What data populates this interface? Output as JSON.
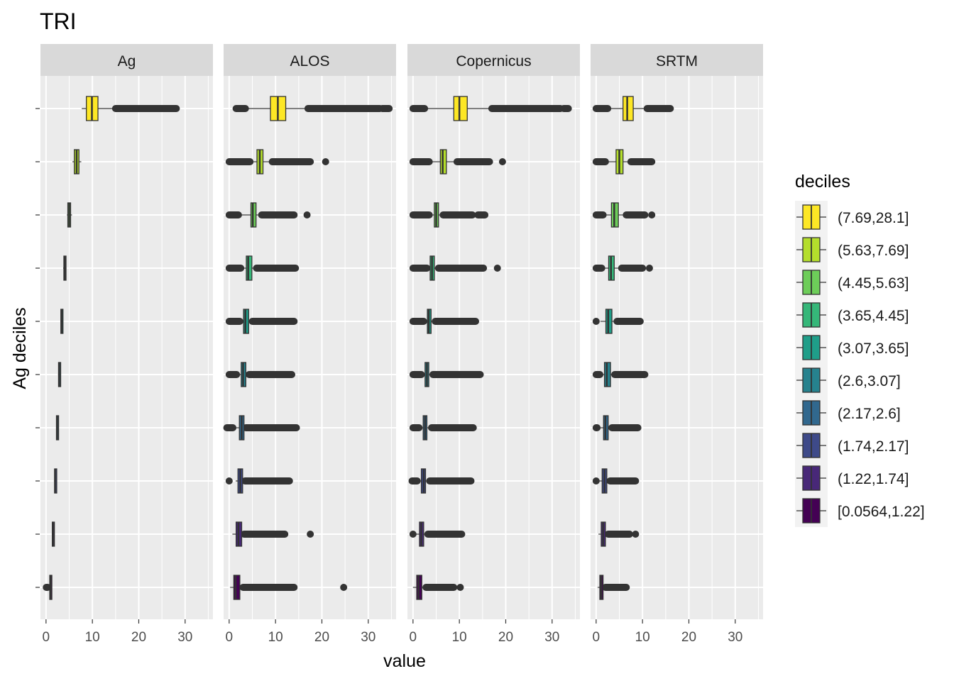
{
  "chart_data": {
    "type": "boxplot",
    "title": "TRI",
    "xlabel": "value",
    "ylabel": "Ag deciles",
    "xlim": [
      -1.2,
      36
    ],
    "x_ticks": [
      0,
      10,
      20,
      30
    ],
    "grid": true,
    "facets": [
      "Ag",
      "ALOS",
      "Copernicus",
      "SRTM"
    ],
    "legend": {
      "title": "deciles",
      "position": "right",
      "entries": [
        {
          "label": "(7.69,28.1]",
          "color": "#FDE725"
        },
        {
          "label": "(5.63,7.69]",
          "color": "#B4DE2C"
        },
        {
          "label": "(4.45,5.63]",
          "color": "#6DCD59"
        },
        {
          "label": "(3.65,4.45]",
          "color": "#35B779"
        },
        {
          "label": "(3.07,3.65]",
          "color": "#1F9E89"
        },
        {
          "label": "(2.6,3.07]",
          "color": "#26828E"
        },
        {
          "label": "(2.17,2.6]",
          "color": "#31688E"
        },
        {
          "label": "(1.74,2.17]",
          "color": "#3E4A89"
        },
        {
          "label": "(1.22,1.74]",
          "color": "#482878"
        },
        {
          "label": "[0.0564,1.22]",
          "color": "#440154"
        }
      ]
    },
    "panels": [
      {
        "name": "Ag",
        "boxes": [
          {
            "decile": "(7.69,28.1]",
            "lw": 7.7,
            "q1": 8.7,
            "med": 9.9,
            "q3": 11.2,
            "uw": 15.0,
            "out_min": null,
            "out_ranges": [
              [
                15.0,
                28.1
              ]
            ]
          },
          {
            "decile": "(5.63,7.69]",
            "lw": 5.7,
            "q1": 6.1,
            "med": 6.6,
            "q3": 7.1,
            "uw": 7.6,
            "out_min": null,
            "out_ranges": []
          },
          {
            "decile": "(4.45,5.63]",
            "lw": 4.5,
            "q1": 4.7,
            "med": 5.0,
            "q3": 5.3,
            "uw": 5.6,
            "out_min": null,
            "out_ranges": []
          },
          {
            "decile": "(3.65,4.45]",
            "lw": 3.7,
            "q1": 3.85,
            "med": 4.05,
            "q3": 4.25,
            "uw": 4.4,
            "out_min": null,
            "out_ranges": []
          },
          {
            "decile": "(3.07,3.65]",
            "lw": 3.1,
            "q1": 3.2,
            "med": 3.35,
            "q3": 3.5,
            "uw": 3.6,
            "out_min": null,
            "out_ranges": []
          },
          {
            "decile": "(2.6,3.07]",
            "lw": 2.6,
            "q1": 2.7,
            "med": 2.85,
            "q3": 2.95,
            "uw": 3.05,
            "out_min": null,
            "out_ranges": []
          },
          {
            "decile": "(2.17,2.6]",
            "lw": 2.2,
            "q1": 2.25,
            "med": 2.4,
            "q3": 2.5,
            "uw": 2.58,
            "out_min": null,
            "out_ranges": []
          },
          {
            "decile": "(1.74,2.17]",
            "lw": 1.75,
            "q1": 1.85,
            "med": 1.95,
            "q3": 2.05,
            "uw": 2.15,
            "out_min": null,
            "out_ranges": []
          },
          {
            "decile": "(1.22,1.74]",
            "lw": 1.25,
            "q1": 1.35,
            "med": 1.5,
            "q3": 1.6,
            "uw": 1.72,
            "out_min": null,
            "out_ranges": []
          },
          {
            "decile": "[0.0564,1.22]",
            "lw": 0.5,
            "q1": 0.8,
            "med": 0.95,
            "q3": 1.1,
            "uw": 1.22,
            "out_min": 0.06,
            "out_ranges": [
              [
                0.06,
                0.35
              ]
            ]
          }
        ]
      },
      {
        "name": "ALOS",
        "boxes": [
          {
            "decile": "(7.69,28.1]",
            "lw": 3.5,
            "q1": 8.9,
            "med": 10.5,
            "q3": 12.2,
            "uw": 17.0,
            "out_min": null,
            "out_ranges": [
              [
                1.5,
                3.5
              ],
              [
                17.0,
                32.5
              ],
              [
                33.0,
                34.5
              ]
            ]
          },
          {
            "decile": "(5.63,7.69]",
            "lw": 4.5,
            "q1": 6.0,
            "med": 6.6,
            "q3": 7.3,
            "uw": 9.3,
            "out_min": null,
            "out_ranges": [
              [
                0.0,
                4.5
              ],
              [
                9.3,
                17.5
              ],
              [
                20.8,
                20.8
              ]
            ]
          },
          {
            "decile": "(4.45,5.63]",
            "lw": 2.0,
            "q1": 4.7,
            "med": 5.1,
            "q3": 5.8,
            "uw": 7.0,
            "out_min": null,
            "out_ranges": [
              [
                0.0,
                2.0
              ],
              [
                7.0,
                14.0
              ],
              [
                16.8,
                16.8
              ]
            ]
          },
          {
            "decile": "(3.65,4.45]",
            "lw": 2.5,
            "q1": 3.7,
            "med": 4.1,
            "q3": 4.9,
            "uw": 5.9,
            "out_min": null,
            "out_ranges": [
              [
                0.0,
                2.5
              ],
              [
                5.9,
                14.3
              ]
            ]
          },
          {
            "decile": "(3.07,3.65]",
            "lw": 2.3,
            "q1": 3.1,
            "med": 3.5,
            "q3": 4.2,
            "uw": 5.0,
            "out_min": null,
            "out_ranges": [
              [
                0.0,
                2.3
              ],
              [
                5.0,
                14.0
              ]
            ]
          },
          {
            "decile": "(2.6,3.07]",
            "lw": 1.6,
            "q1": 2.6,
            "med": 3.0,
            "q3": 3.6,
            "uw": 4.3,
            "out_min": null,
            "out_ranges": [
              [
                0.0,
                1.6
              ],
              [
                4.3,
                13.5
              ]
            ]
          },
          {
            "decile": "(2.17,2.6]",
            "lw": 1.5,
            "q1": 2.2,
            "med": 2.7,
            "q3": 3.2,
            "uw": 3.6,
            "out_min": null,
            "out_ranges": [
              [
                -0.5,
                0.8
              ],
              [
                3.6,
                14.5
              ]
            ]
          },
          {
            "decile": "(1.74,2.17]",
            "lw": 1.4,
            "q1": 1.9,
            "med": 2.4,
            "q3": 2.9,
            "uw": 3.4,
            "out_min": null,
            "out_ranges": [
              [
                0.0,
                0.0
              ],
              [
                3.4,
                13.0
              ]
            ]
          },
          {
            "decile": "(1.22,1.74]",
            "lw": 0.7,
            "q1": 1.5,
            "med": 2.0,
            "q3": 2.7,
            "uw": 3.2,
            "out_min": null,
            "out_ranges": [
              [
                3.2,
                12.0
              ],
              [
                17.5,
                17.5
              ]
            ]
          },
          {
            "decile": "[0.0564,1.22]",
            "lw": 0.2,
            "q1": 1.0,
            "med": 1.4,
            "q3": 2.3,
            "uw": 3.0,
            "out_min": null,
            "out_ranges": [
              [
                3.0,
                14.0
              ],
              [
                24.7,
                24.7
              ]
            ]
          }
        ]
      },
      {
        "name": "Copernicus",
        "boxes": [
          {
            "decile": "(7.69,28.1]",
            "lw": 2.5,
            "q1": 8.8,
            "med": 10.0,
            "q3": 11.7,
            "uw": 17.0,
            "out_min": null,
            "out_ranges": [
              [
                0.0,
                2.5
              ],
              [
                17.0,
                31.8
              ],
              [
                32.5,
                33.5
              ]
            ]
          },
          {
            "decile": "(5.63,7.69]",
            "lw": 3.5,
            "q1": 5.9,
            "med": 6.4,
            "q3": 7.2,
            "uw": 9.5,
            "out_min": null,
            "out_ranges": [
              [
                0.0,
                3.5
              ],
              [
                9.5,
                16.5
              ],
              [
                19.3,
                19.3
              ]
            ]
          },
          {
            "decile": "(4.45,5.63]",
            "lw": 3.5,
            "q1": 4.6,
            "med": 5.0,
            "q3": 5.5,
            "uw": 6.5,
            "out_min": null,
            "out_ranges": [
              [
                0.0,
                3.5
              ],
              [
                6.5,
                12.8
              ],
              [
                14.0,
                15.5
              ]
            ]
          },
          {
            "decile": "(3.65,4.45]",
            "lw": 3.0,
            "q1": 3.7,
            "med": 4.1,
            "q3": 4.6,
            "uw": 5.5,
            "out_min": null,
            "out_ranges": [
              [
                0.0,
                3.0
              ],
              [
                5.5,
                15.2
              ],
              [
                18.2,
                18.2
              ]
            ]
          },
          {
            "decile": "(3.07,3.65]",
            "lw": 2.3,
            "q1": 3.1,
            "med": 3.4,
            "q3": 3.9,
            "uw": 4.8,
            "out_min": null,
            "out_ranges": [
              [
                0.0,
                2.3
              ],
              [
                4.8,
                13.5
              ]
            ]
          },
          {
            "decile": "(2.6,3.07]",
            "lw": 1.8,
            "q1": 2.6,
            "med": 3.0,
            "q3": 3.4,
            "uw": 4.3,
            "out_min": null,
            "out_ranges": [
              [
                0.0,
                1.8
              ],
              [
                4.3,
                14.5
              ]
            ]
          },
          {
            "decile": "(2.17,2.6]",
            "lw": 1.3,
            "q1": 2.2,
            "med": 2.6,
            "q3": 3.0,
            "uw": 4.0,
            "out_min": null,
            "out_ranges": [
              [
                0.0,
                1.3
              ],
              [
                4.0,
                13.0
              ]
            ]
          },
          {
            "decile": "(1.74,2.17]",
            "lw": 0.9,
            "q1": 1.8,
            "med": 2.3,
            "q3": 2.7,
            "uw": 3.6,
            "out_min": null,
            "out_ranges": [
              [
                -0.2,
                0.9
              ],
              [
                3.6,
                12.5
              ]
            ]
          },
          {
            "decile": "(1.22,1.74]",
            "lw": 0.3,
            "q1": 1.4,
            "med": 1.8,
            "q3": 2.3,
            "uw": 3.2,
            "out_min": null,
            "out_ranges": [
              [
                0.0,
                0.0
              ],
              [
                3.2,
                10.5
              ]
            ]
          },
          {
            "decile": "[0.0564,1.22]",
            "lw": 0.0,
            "q1": 0.8,
            "med": 1.2,
            "q3": 1.9,
            "uw": 2.8,
            "out_min": null,
            "out_ranges": [
              [
                2.8,
                8.8
              ],
              [
                10.2,
                10.2
              ]
            ]
          }
        ]
      },
      {
        "name": "SRTM",
        "boxes": [
          {
            "decile": "(7.69,28.1]",
            "lw": 2.5,
            "q1": 5.8,
            "med": 6.7,
            "q3": 8.0,
            "uw": 11.0,
            "out_min": null,
            "out_ranges": [
              [
                0.0,
                2.5
              ],
              [
                11.0,
                16.0
              ]
            ]
          },
          {
            "decile": "(5.63,7.69]",
            "lw": 2.0,
            "q1": 4.3,
            "med": 5.0,
            "q3": 5.8,
            "uw": 7.5,
            "out_min": null,
            "out_ranges": [
              [
                0.0,
                2.0
              ],
              [
                7.5,
                12.0
              ]
            ]
          },
          {
            "decile": "(4.45,5.63]",
            "lw": 1.5,
            "q1": 3.3,
            "med": 3.9,
            "q3": 4.8,
            "uw": 6.5,
            "out_min": null,
            "out_ranges": [
              [
                0.0,
                1.5
              ],
              [
                6.5,
                10.5
              ],
              [
                12.0,
                12.0
              ]
            ]
          },
          {
            "decile": "(3.65,4.45]",
            "lw": 1.2,
            "q1": 2.7,
            "med": 3.2,
            "q3": 3.9,
            "uw": 5.5,
            "out_min": null,
            "out_ranges": [
              [
                0.0,
                1.2
              ],
              [
                5.5,
                10.0
              ],
              [
                11.5,
                11.5
              ]
            ]
          },
          {
            "decile": "(3.07,3.65]",
            "lw": 0.9,
            "q1": 2.1,
            "med": 2.6,
            "q3": 3.4,
            "uw": 4.5,
            "out_min": null,
            "out_ranges": [
              [
                0.0,
                0.0
              ],
              [
                4.5,
                9.5
              ]
            ]
          },
          {
            "decile": "(2.6,3.07]",
            "lw": 0.8,
            "q1": 1.8,
            "med": 2.3,
            "q3": 3.1,
            "uw": 4.0,
            "out_min": null,
            "out_ranges": [
              [
                0.0,
                0.8
              ],
              [
                4.0,
                10.5
              ]
            ]
          },
          {
            "decile": "(2.17,2.6]",
            "lw": 0.8,
            "q1": 1.6,
            "med": 2.0,
            "q3": 2.6,
            "uw": 3.4,
            "out_min": null,
            "out_ranges": [
              [
                0.0,
                0.2
              ],
              [
                3.4,
                9.0
              ]
            ]
          },
          {
            "decile": "(1.74,2.17]",
            "lw": 0.7,
            "q1": 1.3,
            "med": 1.8,
            "q3": 2.3,
            "uw": 3.0,
            "out_min": null,
            "out_ranges": [
              [
                0.0,
                0.0
              ],
              [
                3.0,
                8.5
              ]
            ]
          },
          {
            "decile": "(1.22,1.74]",
            "lw": 0.5,
            "q1": 1.1,
            "med": 1.5,
            "q3": 2.0,
            "uw": 2.6,
            "out_min": null,
            "out_ranges": [
              [
                2.6,
                7.2
              ],
              [
                8.5,
                8.5
              ]
            ]
          },
          {
            "decile": "[0.0564,1.22]",
            "lw": 0.3,
            "q1": 0.8,
            "med": 1.1,
            "q3": 1.5,
            "uw": 2.0,
            "out_min": null,
            "out_ranges": [
              [
                2.0,
                6.5
              ]
            ]
          }
        ]
      }
    ]
  }
}
